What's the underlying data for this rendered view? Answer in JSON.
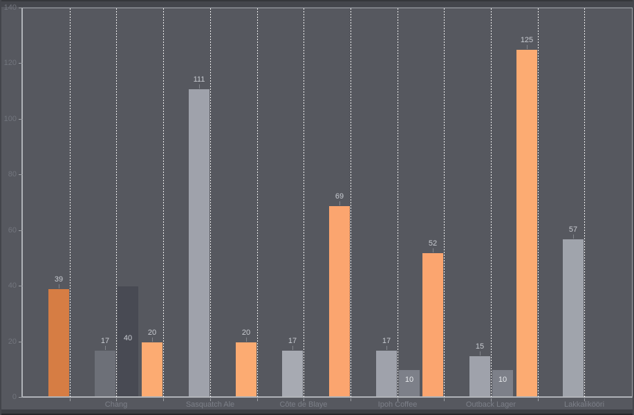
{
  "chart_data": {
    "type": "bar",
    "title": "",
    "legend": "none",
    "grid": "vertical-dotted",
    "ylim": [
      0,
      140
    ],
    "y_ticks": [
      0,
      20,
      40,
      60,
      80,
      100,
      120,
      140
    ],
    "x_slot_count": 12,
    "x_slot_labels": [
      "",
      "Chang",
      "",
      "Sasquatch Ale",
      "",
      "Côte de Blaye",
      "",
      "Ipoh Coffee",
      "",
      "Outback Lager",
      "",
      "Lakkalikööri"
    ],
    "bars": [
      {
        "slot": 1,
        "side": "left",
        "value": 39,
        "color": "#d67d44",
        "label": "above"
      },
      {
        "slot": 2,
        "side": "left",
        "value": 17,
        "color": "#6d7078",
        "label": "above"
      },
      {
        "slot": 2,
        "side": "right",
        "value": 40,
        "color": "#484a53",
        "label": "inside",
        "label_dy": 69
      },
      {
        "slot": 3,
        "side": "left",
        "value": 20,
        "color": "#fcab72",
        "label": "above"
      },
      {
        "slot": 4,
        "side": "left",
        "value": 111,
        "color": "#9fa2ab",
        "label": "above"
      },
      {
        "slot": 5,
        "side": "left",
        "value": 20,
        "color": "#fcab72",
        "label": "above"
      },
      {
        "slot": 6,
        "side": "left",
        "value": 17,
        "color": "#a7aab2",
        "label": "above"
      },
      {
        "slot": 7,
        "side": "left",
        "value": 69,
        "color": "#fba56f",
        "label": "above"
      },
      {
        "slot": 8,
        "side": "left",
        "value": 17,
        "color": "#9fa2ab",
        "label": "above"
      },
      {
        "slot": 8,
        "side": "right",
        "value": 10,
        "color": "#7d8089",
        "label": "inside",
        "label_dy": 8,
        "label_color": "#e9ebee"
      },
      {
        "slot": 9,
        "side": "left",
        "value": 52,
        "color": "#fba56f",
        "label": "above"
      },
      {
        "slot": 10,
        "side": "left",
        "value": 15,
        "color": "#9fa2ab",
        "label": "above"
      },
      {
        "slot": 10,
        "side": "right",
        "value": 10,
        "color": "#7d8089",
        "label": "inside",
        "label_dy": 8,
        "label_color": "#e9ebee"
      },
      {
        "slot": 11,
        "side": "left",
        "value": 125,
        "color": "#fcab72",
        "label": "above"
      },
      {
        "slot": 12,
        "side": "left",
        "value": 57,
        "color": "#a0a4ac",
        "label": "above"
      }
    ],
    "colors": {
      "plot_background": "#56585f",
      "frame_top": "#44464c",
      "frame_bottom": "#3c3e44",
      "axis_line": "#b1b4b9",
      "plot_border": "#9ea1a7",
      "gridline": "#ffffff",
      "value_label": "#c9ccd2",
      "category_label": "#7d8089",
      "y_tick_label": "#72757d"
    }
  }
}
